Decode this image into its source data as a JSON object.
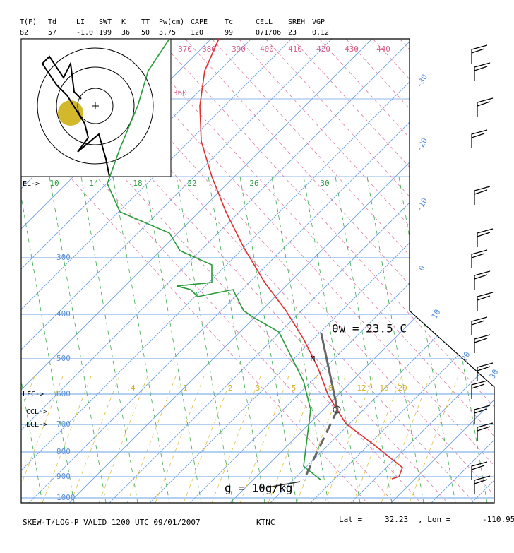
{
  "header": {
    "params": [
      {
        "label": "T(F)",
        "value": "82"
      },
      {
        "label": "Td",
        "value": "57"
      },
      {
        "label": "LI",
        "value": "-1.0"
      },
      {
        "label": "SWT",
        "value": "199"
      },
      {
        "label": "K",
        "value": "36"
      },
      {
        "label": "TT",
        "value": "50"
      },
      {
        "label": "Pw(cm)",
        "value": "3.75"
      },
      {
        "label": "CAPE",
        "value": "120"
      },
      {
        "label": "Tc",
        "value": "99"
      },
      {
        "label": "CELL",
        "value": "071/06"
      },
      {
        "label": "SREH",
        "value": "23"
      },
      {
        "label": "VGP",
        "value": "0.12"
      }
    ]
  },
  "theta_labels": [
    "360",
    "370",
    "380",
    "390",
    "400",
    "410",
    "420",
    "430",
    "440"
  ],
  "isotherm_labels": [
    "-30",
    "-20",
    "-10",
    "0",
    "10",
    "20",
    "30"
  ],
  "moist_labels": [
    "10",
    "14",
    "18",
    "22",
    "26",
    "30"
  ],
  "mixing_labels": [
    ".4",
    "1",
    "2",
    "3",
    "5",
    "8",
    "12",
    "16",
    "20"
  ],
  "pressure_labels": [
    "300",
    "400",
    "500",
    "600",
    "700",
    "800",
    "900",
    "1000"
  ],
  "markers": {
    "el": "EL->",
    "lfc": "LFC->",
    "ccl": "CCL->",
    "lcl": "LCL->"
  },
  "annotations": {
    "theta_w": "θw = 23.5 C",
    "mixing": "g = 10g/kg",
    "m": "M"
  },
  "footer": {
    "title": "SKEW-T/LOG-P VALID 1200 UTC 09/01/2007",
    "station": "KTNC",
    "lat_label": "Lat =",
    "lat": "32.23",
    "lon_label": ", Lon =",
    "lon": "-110.95"
  }
}
